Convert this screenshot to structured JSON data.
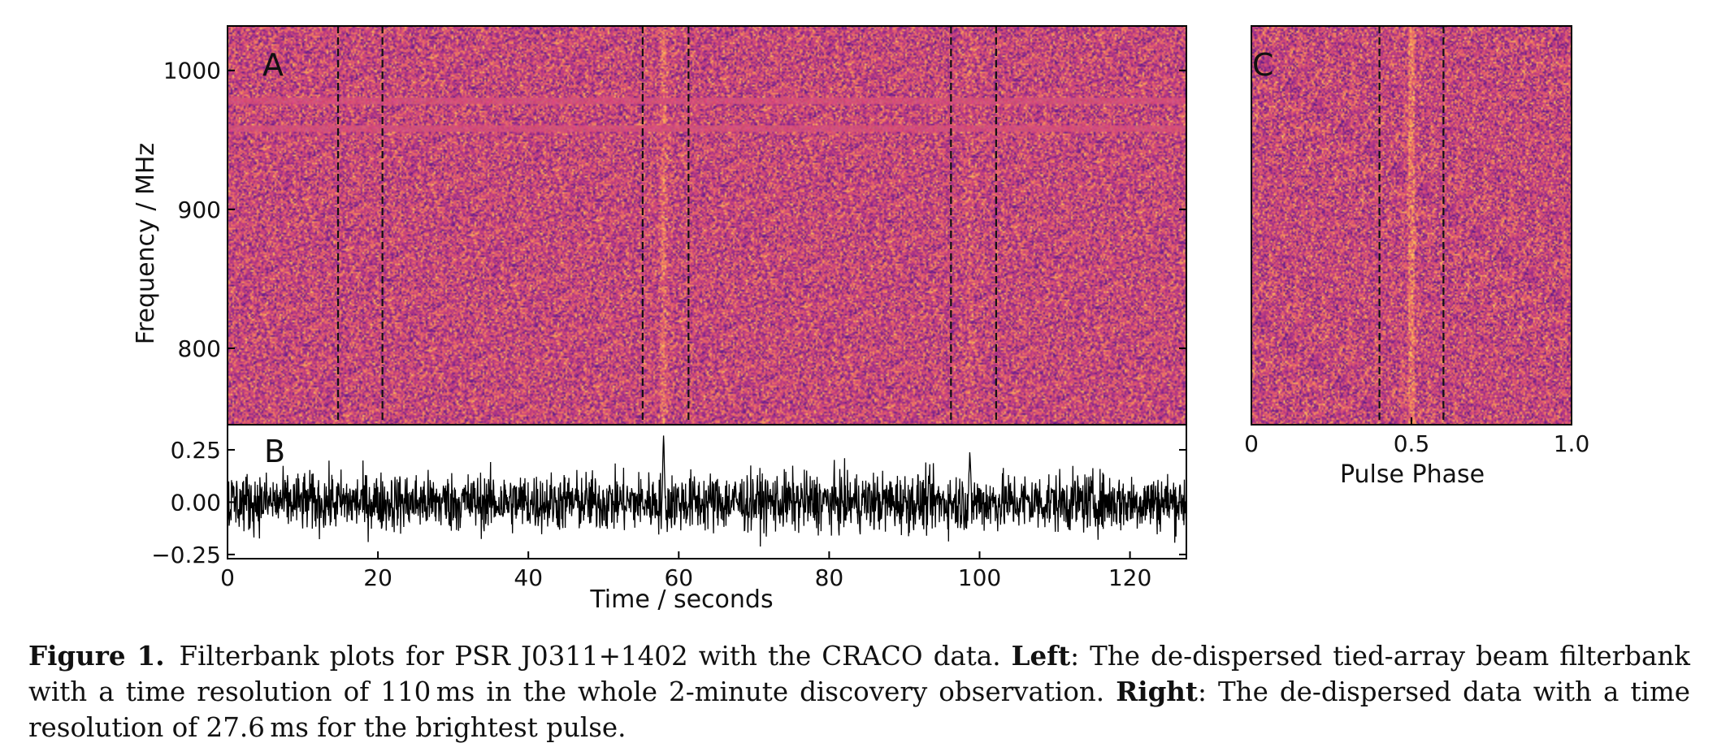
{
  "figure": {
    "panels": {
      "a": {
        "label": "A"
      },
      "b": {
        "label": "B"
      },
      "c": {
        "label": "C"
      }
    },
    "axes": {
      "frequency_label": "Frequency / MHz",
      "time_label": "Time / seconds",
      "phase_label": "Pulse Phase"
    },
    "colors": {
      "colormap": [
        "#5b1a8a",
        "#8e2a8c",
        "#c33d80",
        "#e5606a",
        "#f6935a",
        "#fbc65c"
      ],
      "rfi_band": "#d2507a",
      "timeseries": "#000000",
      "marker_line": "#111111"
    }
  },
  "chart_data": [
    {
      "panel": "A",
      "type": "heatmap",
      "title": "",
      "xlabel": "",
      "ylabel": "Frequency / MHz",
      "xlim": [
        0,
        127.5
      ],
      "ylim": [
        745,
        1032
      ],
      "yticks": [
        {
          "value": 800,
          "label": "800"
        },
        {
          "value": 900,
          "label": "900"
        },
        {
          "value": 1000,
          "label": "1000"
        }
      ],
      "pulses_seconds": [
        14.7,
        20.6,
        55.2,
        61.3,
        96.2,
        102.2
      ],
      "bright_pulse_seconds": 58.0,
      "rfi_channels_mhz": [
        978,
        958
      ]
    },
    {
      "panel": "B",
      "type": "line",
      "title": "",
      "xlabel": "Time / seconds",
      "ylabel": "",
      "xlim": [
        0,
        127.5
      ],
      "ylim": [
        -0.27,
        0.37
      ],
      "xticks": [
        {
          "value": 0,
          "label": "0"
        },
        {
          "value": 20,
          "label": "20"
        },
        {
          "value": 40,
          "label": "40"
        },
        {
          "value": 60,
          "label": "60"
        },
        {
          "value": 80,
          "label": "80"
        },
        {
          "value": 100,
          "label": "100"
        },
        {
          "value": 120,
          "label": "120"
        }
      ],
      "yticks": [
        {
          "value": 0.25,
          "label": "0.25"
        },
        {
          "value": 0.0,
          "label": "0.00"
        },
        {
          "value": -0.25,
          "label": "−0.25"
        }
      ],
      "noise_std": 0.07,
      "peaks": [
        {
          "x": 58.0,
          "y": 0.33
        },
        {
          "x": 98.7,
          "y": 0.22
        }
      ]
    },
    {
      "panel": "C",
      "type": "heatmap",
      "title": "",
      "xlabel": "Pulse Phase",
      "ylabel": "",
      "xlim": [
        0,
        1.0
      ],
      "xticks": [
        {
          "value": 0,
          "label": "0"
        },
        {
          "value": 0.5,
          "label": "0.5"
        },
        {
          "value": 1.0,
          "label": "1.0"
        }
      ],
      "window_phase": [
        0.4,
        0.6
      ],
      "pulse_phase": 0.5
    }
  ],
  "caption": {
    "figure_label": "Figure 1.",
    "intro": "Filterbank plots for PSR J0311+1402 with the CRACO data.",
    "left_label": "Left",
    "left_text": ": The de-dispersed tied-array beam filterbank with a time resolution of 110 ms in the whole 2-minute discovery observation.",
    "right_label": "Right",
    "right_text": ": The de-dispersed data with a time resolution of 27.6 ms for the brightest pulse."
  }
}
